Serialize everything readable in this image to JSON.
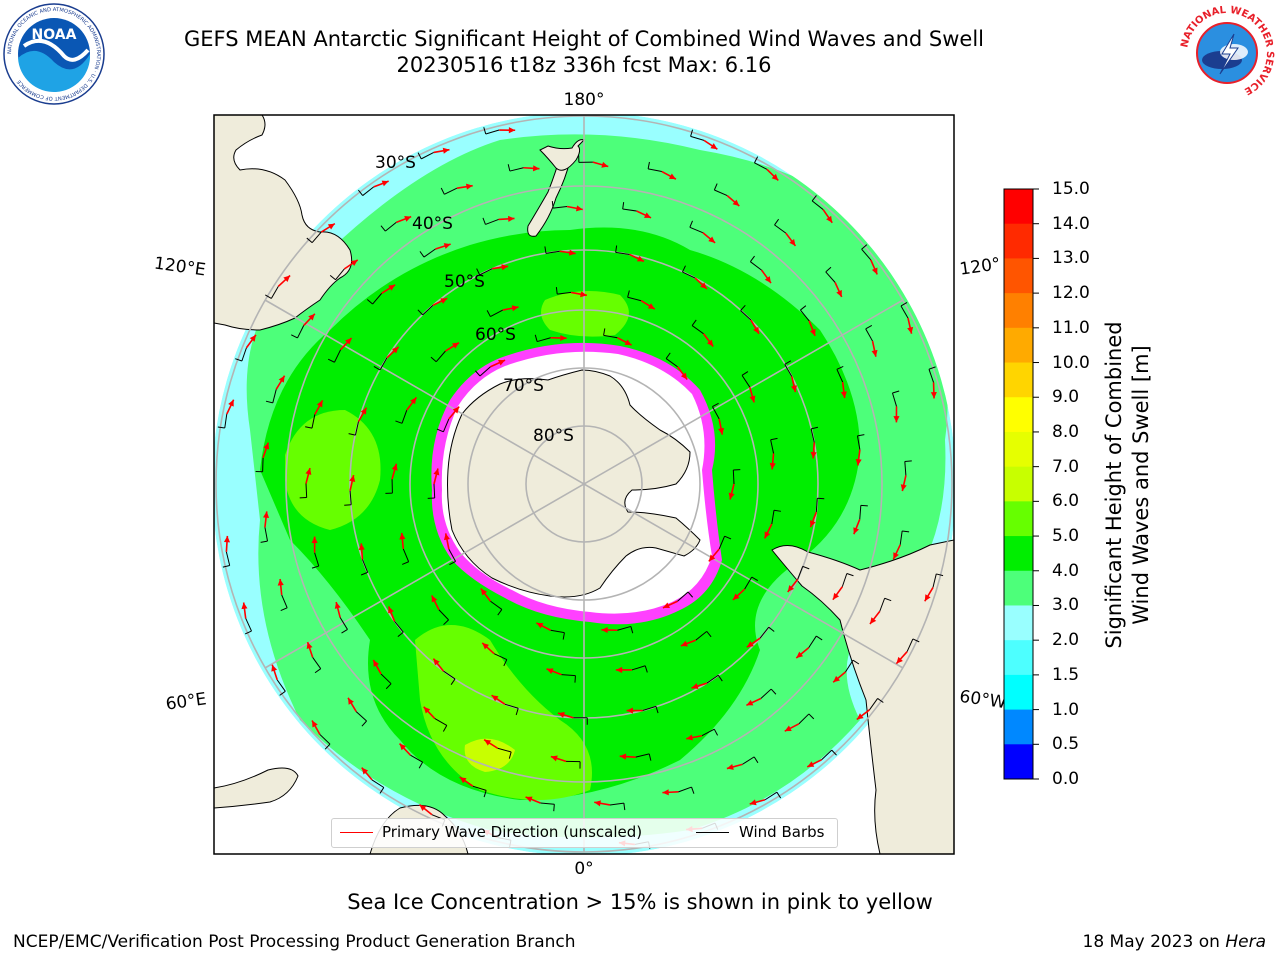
{
  "header": {
    "title_line1": "GEFS MEAN Antarctic Significant Height of Combined Wind Waves and Swell",
    "title_line2": "20230516 t18z 336h fcst   Max: 6.16"
  },
  "logos": {
    "left": "NOAA",
    "left_ring": "NATIONAL OCEANIC AND ATMOSPHERIC ADMINISTRATION · U.S. DEPARTMENT OF COMMERCE",
    "right_ring": "NATIONAL WEATHER SERVICE"
  },
  "map": {
    "longitude_labels": {
      "top": "180°",
      "upper_left": "120°E",
      "upper_right": "120°",
      "lower_left": "60°E",
      "lower_right": "60°W",
      "bottom": "0°"
    },
    "latitude_labels": [
      "30°S",
      "40°S",
      "50°S",
      "60°S",
      "70°S",
      "80°S"
    ],
    "colors": {
      "land": "#efecdb",
      "ice": "#ffffff",
      "sea_ice": "#ff40ff",
      "grid": "#b4b4b4",
      "arrow": "#ff0000",
      "barb": "#000000"
    }
  },
  "legend": {
    "primary_wave": "Primary Wave Direction (unscaled)",
    "wind_barbs": "Wind Barbs"
  },
  "colorbar": {
    "label_line1": "Significant Height of Combined",
    "label_line2": "Wind Waves and Swell [m]",
    "ticks": [
      "15.0",
      "14.0",
      "13.0",
      "12.0",
      "11.0",
      "10.0",
      "9.0",
      "8.0",
      "7.0",
      "6.0",
      "5.0",
      "4.0",
      "3.0",
      "2.0",
      "1.5",
      "1.0",
      "0.5",
      "0.0"
    ],
    "colors": [
      "#ff0000",
      "#ff2a00",
      "#ff5500",
      "#ff8000",
      "#ffaa00",
      "#ffd500",
      "#ffff00",
      "#e6ff00",
      "#c8ff00",
      "#66ff00",
      "#00ee00",
      "#4dff7a",
      "#99ffff",
      "#4dffff",
      "#00ffff",
      "#0088ff",
      "#0000ff"
    ]
  },
  "note": "Sea Ice Concentration > 15% is shown in pink to yellow",
  "footer": {
    "left": "NCEP/EMC/Verification Post Processing Product Generation Branch",
    "right_date": "18 May 2023 on ",
    "right_host": "Hera"
  }
}
